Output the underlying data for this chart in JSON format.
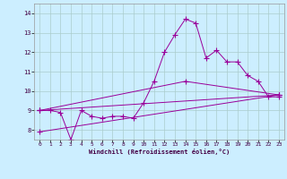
{
  "xlabel": "Windchill (Refroidissement éolien,°C)",
  "bg_color": "#cceeff",
  "line_color": "#990099",
  "xlim": [
    -0.5,
    23.5
  ],
  "ylim": [
    7.5,
    14.5
  ],
  "xtick_labels": [
    "0",
    "1",
    "2",
    "3",
    "4",
    "5",
    "6",
    "7",
    "8",
    "9",
    "10",
    "11",
    "12",
    "13",
    "14",
    "15",
    "16",
    "17",
    "18",
    "19",
    "20",
    "21",
    "22",
    "23"
  ],
  "xtick_positions": [
    0,
    1,
    2,
    3,
    4,
    5,
    6,
    7,
    8,
    9,
    10,
    11,
    12,
    13,
    14,
    15,
    16,
    17,
    18,
    19,
    20,
    21,
    22,
    23
  ],
  "yticks": [
    8,
    9,
    10,
    11,
    12,
    13,
    14
  ],
  "grid_color": "#aacccc",
  "series0_x": [
    0,
    1,
    2,
    3,
    4,
    5,
    6,
    7,
    8,
    9,
    10,
    11,
    12,
    13,
    14,
    15,
    16,
    17,
    18,
    19,
    20,
    21,
    22,
    23
  ],
  "series0_y": [
    9.0,
    9.0,
    8.9,
    7.5,
    9.0,
    8.7,
    8.6,
    8.7,
    8.7,
    8.6,
    9.4,
    10.5,
    12.0,
    12.9,
    13.7,
    13.5,
    11.7,
    12.1,
    11.5,
    11.5,
    10.8,
    10.5,
    9.7,
    9.7
  ],
  "series1_x": [
    0,
    23
  ],
  "series1_y": [
    9.0,
    9.8
  ],
  "series2_x": [
    0,
    23
  ],
  "series2_y": [
    7.9,
    9.8
  ],
  "series3_x": [
    0,
    14,
    23
  ],
  "series3_y": [
    9.0,
    10.5,
    9.8
  ]
}
